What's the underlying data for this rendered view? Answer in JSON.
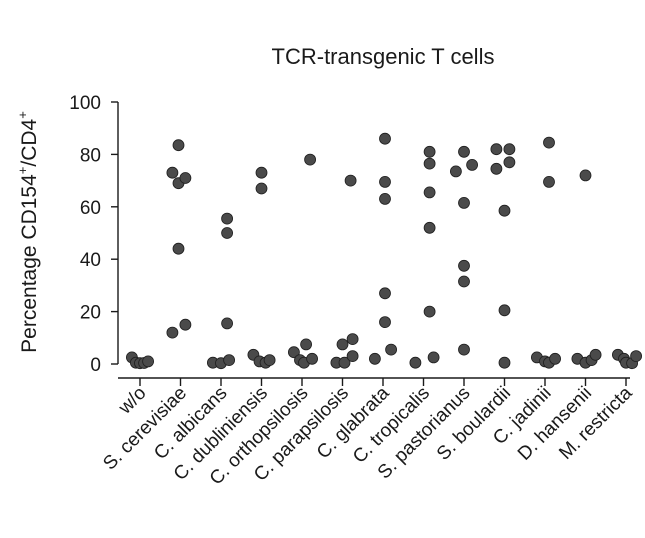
{
  "chart_data": {
    "type": "scatter",
    "title": "TCR-transgenic T cells",
    "ylabel_main": "Percentage CD154",
    "ylabel_sup1": "+",
    "ylabel_mid": "/CD4",
    "ylabel_sup2": "+",
    "ylim": [
      0,
      100
    ],
    "yticks": [
      "0",
      "20",
      "40",
      "60",
      "80",
      "100"
    ],
    "categories": [
      "w/o",
      "S. cerevisiae",
      "C. albicans",
      "C. dubliniensis",
      "C. orthopsilosis",
      "C. parapsilosis",
      "C. glabrata",
      "C. tropicalis",
      "S. pastorianus",
      "S. boulardii",
      "C. jadinii",
      "D. hansenii",
      "M. restricta"
    ],
    "points": [
      [
        [
          -0.2,
          2.5
        ],
        [
          -0.1,
          0.5
        ],
        [
          0.0,
          0.3
        ],
        [
          0.1,
          0.4
        ],
        [
          0.2,
          1.0
        ]
      ],
      [
        [
          -0.2,
          73
        ],
        [
          -0.05,
          83.5
        ],
        [
          -0.05,
          69
        ],
        [
          0.12,
          71
        ],
        [
          -0.05,
          44
        ],
        [
          -0.2,
          12
        ],
        [
          0.12,
          15
        ]
      ],
      [
        [
          0.15,
          55.5
        ],
        [
          0.15,
          50
        ],
        [
          0.15,
          15.5
        ],
        [
          -0.2,
          0.5
        ],
        [
          0.0,
          0.3
        ],
        [
          0.2,
          1.5
        ]
      ],
      [
        [
          0.0,
          73
        ],
        [
          0.0,
          67
        ],
        [
          -0.2,
          3.5
        ],
        [
          -0.05,
          1.0
        ],
        [
          0.1,
          0.5
        ],
        [
          0.2,
          1.5
        ]
      ],
      [
        [
          0.2,
          78
        ],
        [
          -0.2,
          4.5
        ],
        [
          0.1,
          7.5
        ],
        [
          -0.05,
          1.5
        ],
        [
          0.05,
          0.5
        ],
        [
          0.25,
          2.0
        ]
      ],
      [
        [
          0.2,
          70
        ],
        [
          0.0,
          7.5
        ],
        [
          0.25,
          9.5
        ],
        [
          -0.15,
          0.5
        ],
        [
          0.05,
          0.5
        ],
        [
          0.25,
          3.0
        ]
      ],
      [
        [
          0.05,
          86
        ],
        [
          0.05,
          69.5
        ],
        [
          0.05,
          63
        ],
        [
          0.05,
          27
        ],
        [
          0.05,
          16
        ],
        [
          -0.2,
          2.0
        ],
        [
          0.2,
          5.5
        ]
      ],
      [
        [
          0.15,
          81
        ],
        [
          0.15,
          76.5
        ],
        [
          0.15,
          65.5
        ],
        [
          0.15,
          52
        ],
        [
          0.15,
          20
        ],
        [
          -0.2,
          0.5
        ],
        [
          0.25,
          2.5
        ]
      ],
      [
        [
          -0.2,
          73.5
        ],
        [
          0.0,
          81
        ],
        [
          0.2,
          76
        ],
        [
          0.0,
          61.5
        ],
        [
          0.0,
          37.5
        ],
        [
          0.0,
          31.5
        ],
        [
          0.0,
          5.5
        ]
      ],
      [
        [
          -0.2,
          82
        ],
        [
          0.12,
          82
        ],
        [
          -0.2,
          74.5
        ],
        [
          0.12,
          77
        ],
        [
          0.0,
          58.5
        ],
        [
          0.0,
          20.5
        ],
        [
          0.0,
          0.5
        ]
      ],
      [
        [
          0.1,
          84.5
        ],
        [
          0.1,
          69.5
        ],
        [
          -0.2,
          2.5
        ],
        [
          0.0,
          1.0
        ],
        [
          0.1,
          0.5
        ],
        [
          0.25,
          2.0
        ]
      ],
      [
        [
          0.0,
          72
        ],
        [
          -0.2,
          2.0
        ],
        [
          0.0,
          0.5
        ],
        [
          0.15,
          1.5
        ],
        [
          0.25,
          3.5
        ]
      ],
      [
        [
          -0.2,
          3.5
        ],
        [
          -0.05,
          2.0
        ],
        [
          0.0,
          0.5
        ],
        [
          0.15,
          0.3
        ],
        [
          0.25,
          3.0
        ]
      ]
    ]
  }
}
